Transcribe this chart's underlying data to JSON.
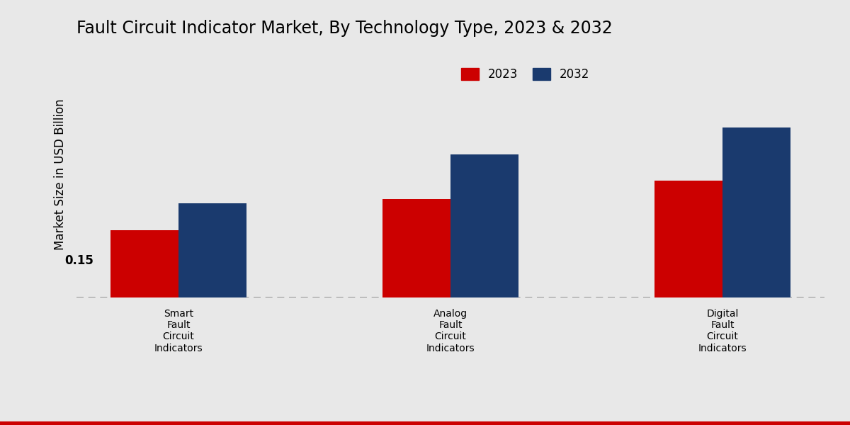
{
  "title": "Fault Circuit Indicator Market, By Technology Type, 2023 & 2032",
  "ylabel": "Market Size in USD Billion",
  "categories": [
    "Smart\nFault\nCircuit\nIndicators",
    "Analog\nFault\nCircuit\nIndicators",
    "Digital\nFault\nCircuit\nIndicators"
  ],
  "values_2023": [
    0.15,
    0.22,
    0.26
  ],
  "values_2032": [
    0.21,
    0.32,
    0.38
  ],
  "color_2023": "#CC0000",
  "color_2032": "#1A3A6E",
  "annotation_text": "0.15",
  "background_color": "#E8E8E8",
  "bar_width": 0.25,
  "ylim": [
    0,
    0.55
  ],
  "legend_labels": [
    "2023",
    "2032"
  ],
  "title_fontsize": 17,
  "axis_label_fontsize": 12,
  "tick_fontsize": 10,
  "legend_fontsize": 12
}
